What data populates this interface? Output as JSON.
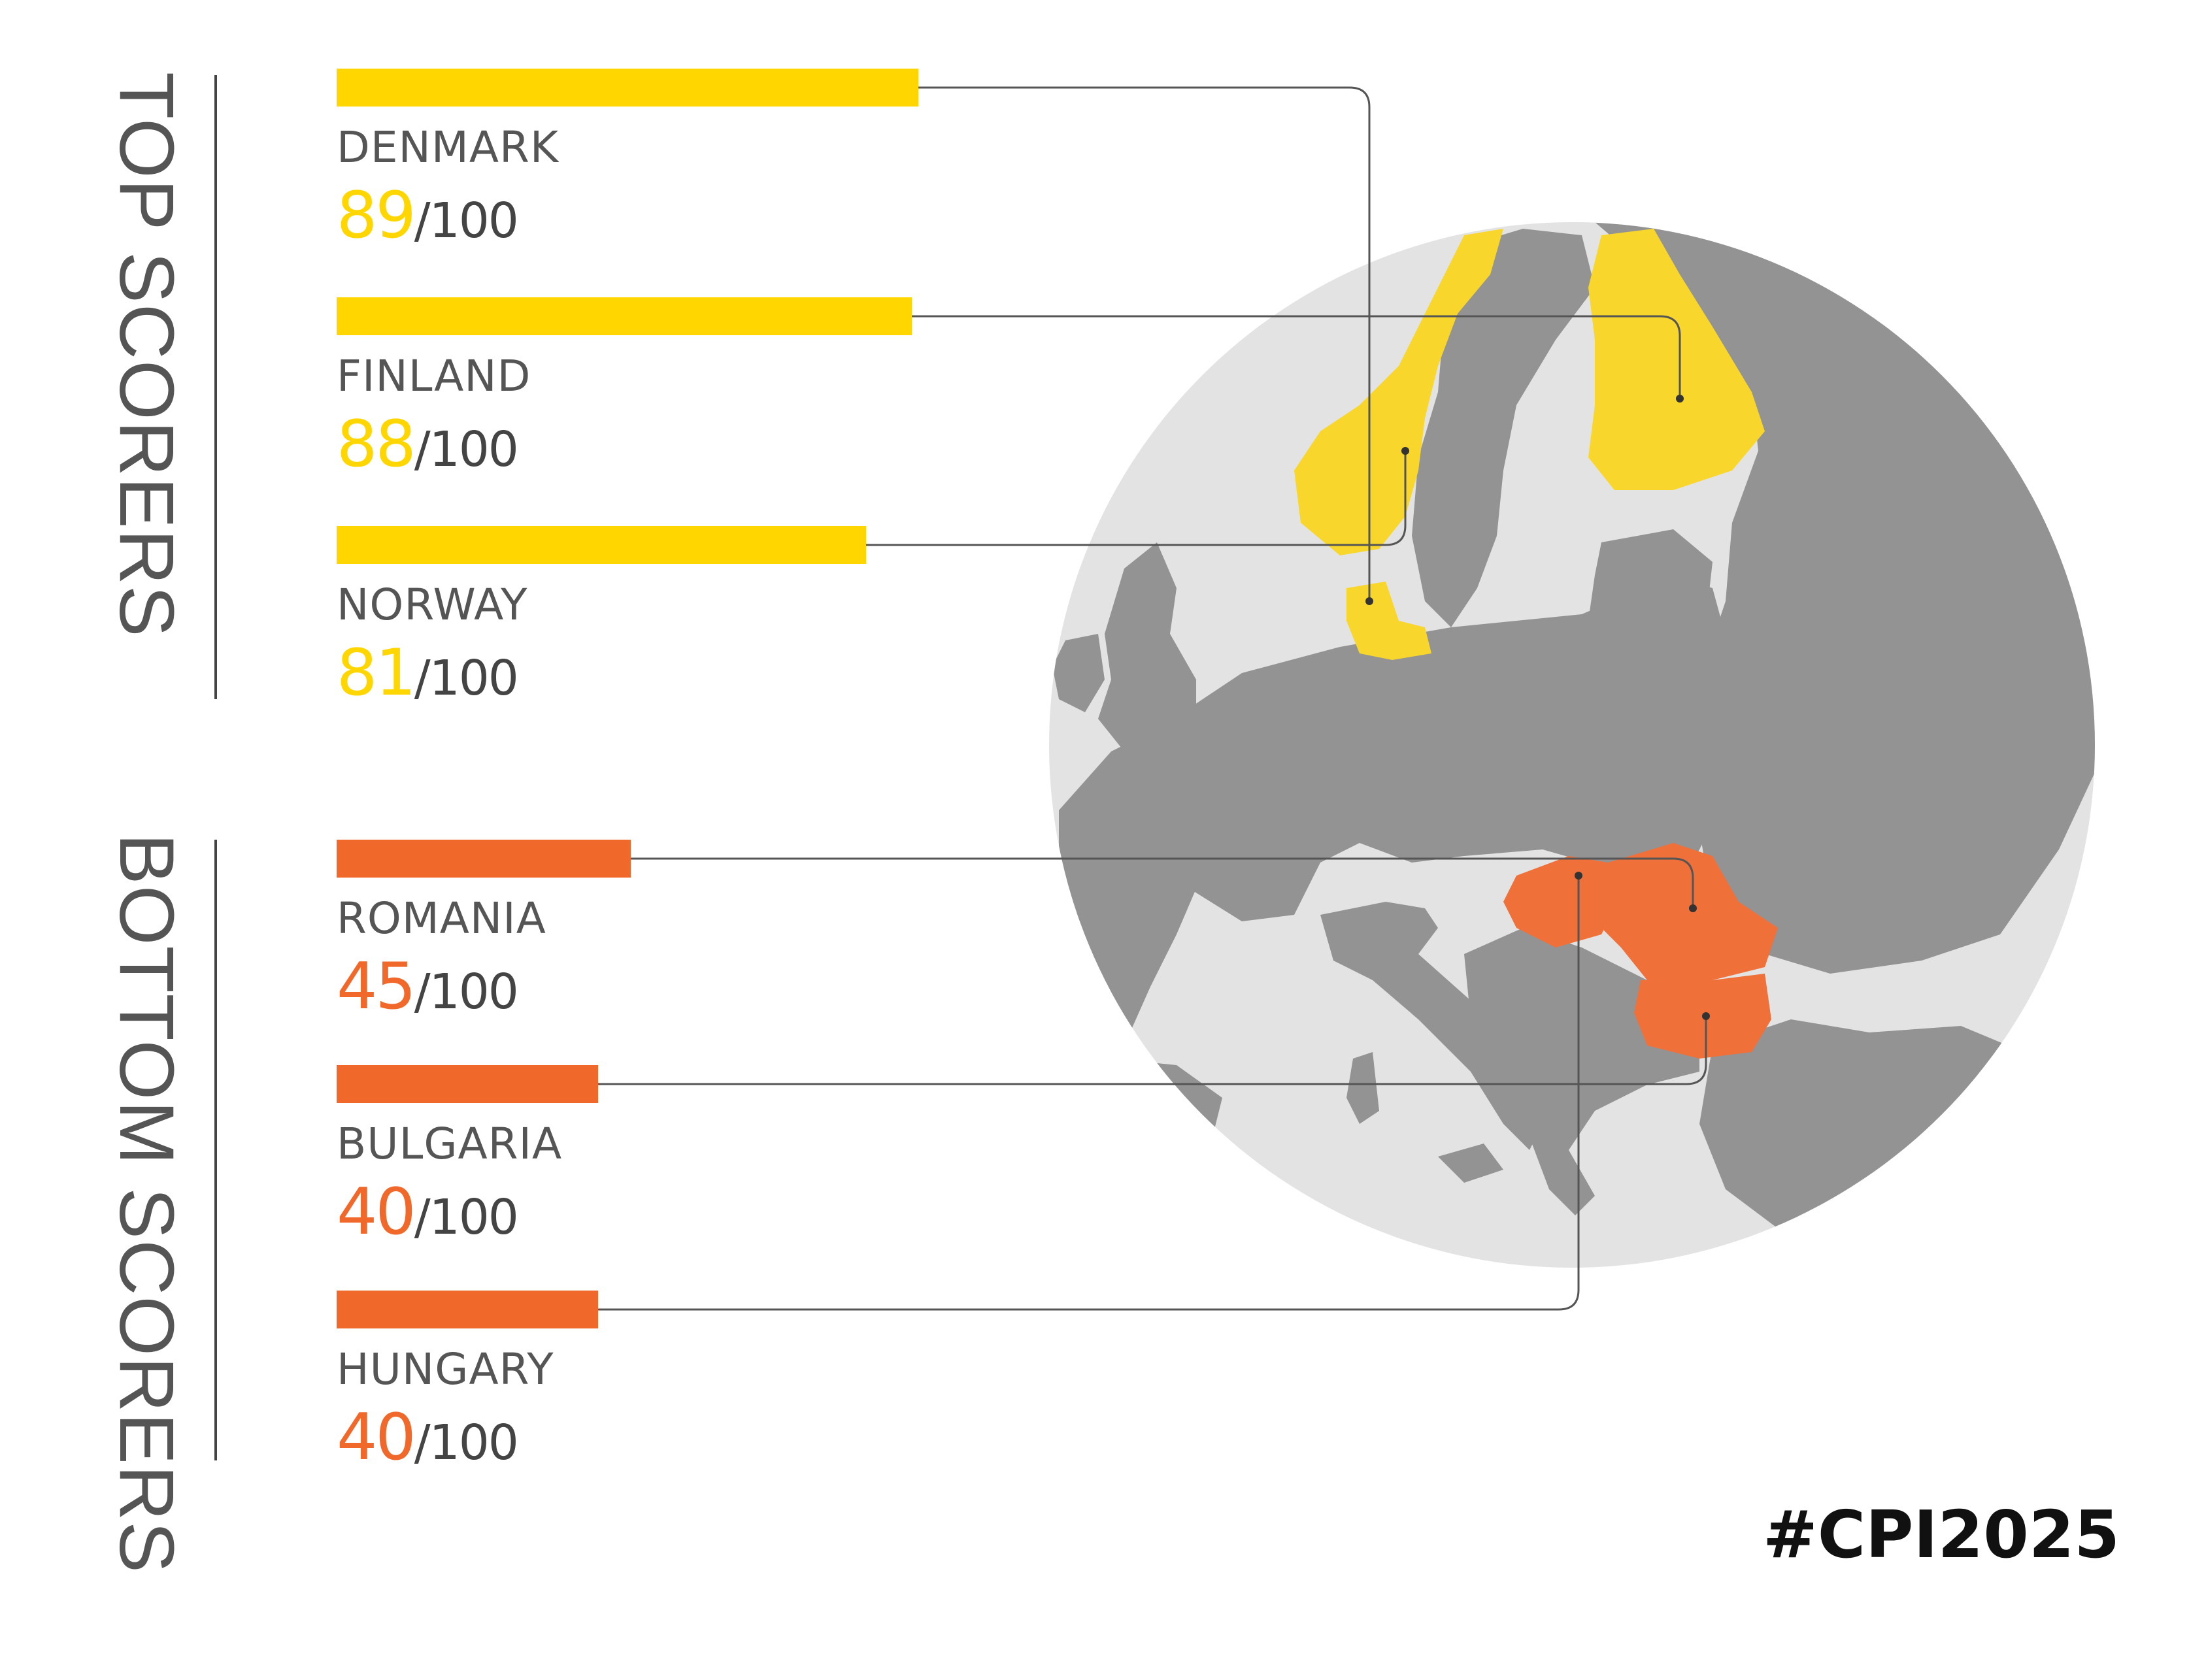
{
  "colors": {
    "top": "#FFD600",
    "bottom": "#F0682A",
    "land": "#939393",
    "globe": "#E3E3E3",
    "top_region": "#F8D62B",
    "bottom_region": "#F0703A",
    "connector": "#555555"
  },
  "sections": {
    "top_title": "TOP SCORERS",
    "bottom_title": "BOTTOM SCORERS"
  },
  "chart_data": {
    "type": "bar",
    "orientation": "horizontal",
    "max": 100,
    "score_suffix": "/100",
    "groups": [
      {
        "name": "TOP SCORERS",
        "color": "#FFD600",
        "items": [
          {
            "country": "DENMARK",
            "value": 89
          },
          {
            "country": "FINLAND",
            "value": 88
          },
          {
            "country": "NORWAY",
            "value": 81
          }
        ]
      },
      {
        "name": "BOTTOM SCORERS",
        "color": "#F0682A",
        "items": [
          {
            "country": "ROMANIA",
            "value": 45
          },
          {
            "country": "BULGARIA",
            "value": 40
          },
          {
            "country": "HUNGARY",
            "value": 40
          }
        ]
      }
    ]
  },
  "footer": {
    "hashtag": "#CPI2025"
  }
}
